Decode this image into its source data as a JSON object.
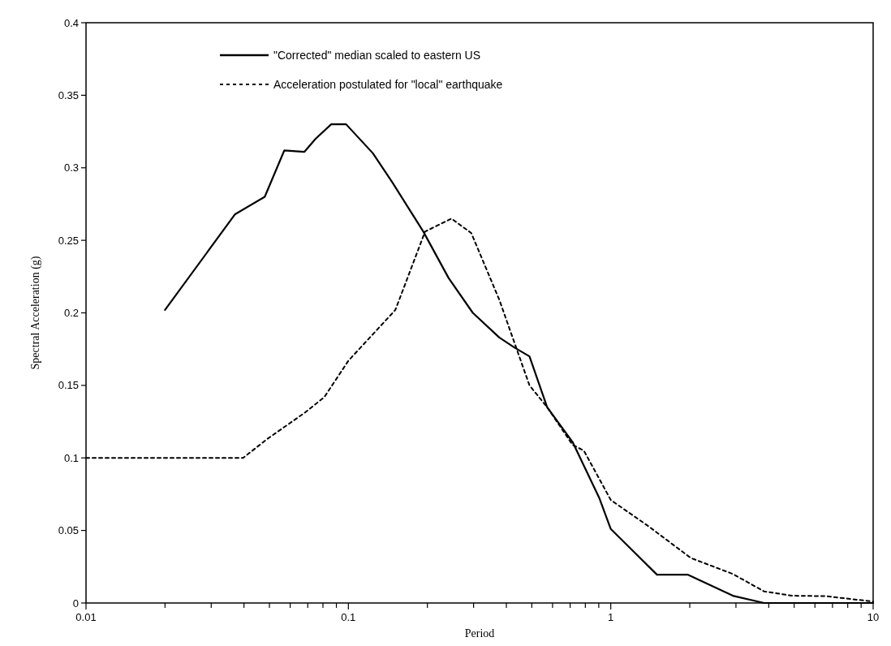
{
  "chart_data": {
    "type": "line",
    "xlabel": "Period",
    "ylabel": "Spectral Acceleration (g)",
    "log": "x",
    "legend": "top left",
    "grid": false,
    "xlim": [
      0.01,
      10
    ],
    "xticks": [
      0.01,
      {
        "value": 0.02,
        "label": null
      },
      {
        "value": 0.03,
        "label": null
      },
      {
        "value": 0.04,
        "label": null
      },
      {
        "value": 0.05,
        "label": null
      },
      {
        "value": 0.06,
        "label": null
      },
      {
        "value": 0.07,
        "label": null
      },
      {
        "value": 0.08,
        "label": null
      },
      {
        "value": 0.09,
        "label": null
      },
      0.1,
      {
        "value": 0.2,
        "label": null
      },
      {
        "value": 0.3,
        "label": null
      },
      {
        "value": 0.4,
        "label": null
      },
      {
        "value": 0.5,
        "label": null
      },
      {
        "value": 0.6,
        "label": null
      },
      {
        "value": 0.7,
        "label": null
      },
      {
        "value": 0.8,
        "label": null
      },
      {
        "value": 0.9,
        "label": null
      },
      1,
      {
        "value": 2,
        "label": null
      },
      {
        "value": 3,
        "label": null
      },
      {
        "value": 4,
        "label": null
      },
      {
        "value": 5,
        "label": null
      },
      {
        "value": 6,
        "label": null
      },
      {
        "value": 7,
        "label": null
      },
      {
        "value": 8,
        "label": null
      },
      {
        "value": 9,
        "label": null
      },
      10
    ],
    "ylim": [
      0,
      0.4
    ],
    "yticks": [
      0,
      0.05,
      0.1,
      0.15,
      0.2,
      0.25,
      0.3,
      0.35,
      0.4
    ],
    "series": [
      {
        "name": "\"Corrected\" median scaled to eastern US",
        "color": "#000000",
        "line_style": "solid",
        "x": [
          0.02,
          0.037,
          0.048,
          0.057,
          0.068,
          0.075,
          0.086,
          0.098,
          0.124,
          0.147,
          0.193,
          0.241,
          0.298,
          0.376,
          0.43,
          0.49,
          0.572,
          0.715,
          0.906,
          1.0,
          1.5,
          1.97,
          2.92,
          3.84,
          10
        ],
        "values": [
          0.202,
          0.268,
          0.28,
          0.312,
          0.311,
          0.32,
          0.33,
          0.33,
          0.31,
          0.29,
          0.256,
          0.224,
          0.2,
          0.183,
          0.176,
          0.17,
          0.135,
          0.111,
          0.072,
          0.051,
          0.0195,
          0.0195,
          0.005,
          0,
          0
        ]
      },
      {
        "name": "Acceleration postulated for \"local\" earthquake",
        "color": "#000000",
        "line_style": "dotted",
        "x": [
          0.01,
          0.0397,
          0.049,
          0.068,
          0.081,
          0.1,
          0.151,
          0.196,
          0.247,
          0.294,
          0.376,
          0.49,
          0.572,
          0.715,
          0.79,
          1.0,
          1.39,
          2.02,
          2.92,
          3.84,
          4.91,
          6.6,
          10
        ],
        "values": [
          0.1,
          0.1,
          0.113,
          0.131,
          0.142,
          0.167,
          0.202,
          0.256,
          0.265,
          0.255,
          0.209,
          0.15,
          0.135,
          0.109,
          0.105,
          0.071,
          0.053,
          0.031,
          0.02,
          0.008,
          0.005,
          0.0047,
          0.001
        ]
      }
    ]
  }
}
